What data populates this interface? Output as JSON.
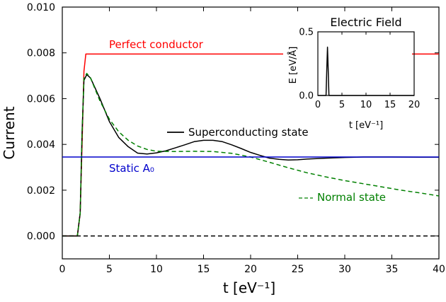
{
  "chart_data": [
    {
      "type": "line",
      "xlabel": "t [eV⁻¹]",
      "ylabel": "Current",
      "xlim": [
        0,
        40
      ],
      "ylim": [
        -0.001,
        0.01
      ],
      "xticks": [
        0,
        5,
        10,
        15,
        20,
        25,
        30,
        35,
        40
      ],
      "yticks": [
        0.0,
        0.002,
        0.004,
        0.006,
        0.008,
        0.01
      ],
      "xtick_labels": [
        "0",
        "5",
        "10",
        "15",
        "20",
        "25",
        "30",
        "35",
        "40"
      ],
      "ytick_labels": [
        "0.000",
        "0.002",
        "0.004",
        "0.006",
        "0.008",
        "0.010"
      ],
      "grid": false,
      "series": [
        {
          "name": "Perfect conductor",
          "color": "#ff0000",
          "style": "solid",
          "x": [
            0,
            1.6,
            1.9,
            2.1,
            2.3,
            2.5,
            40
          ],
          "y": [
            0,
            0,
            0.001,
            0.004,
            0.0072,
            0.00795,
            0.00795
          ]
        },
        {
          "name": "Superconducting state",
          "color": "#000000",
          "style": "solid",
          "x": [
            0,
            1.6,
            1.9,
            2.1,
            2.3,
            2.6,
            3.0,
            4.0,
            5.0,
            6.0,
            7.0,
            8.0,
            9.0,
            10.0,
            11.0,
            12.0,
            13.0,
            14.0,
            15.0,
            16.0,
            17.0,
            18.0,
            19.0,
            20.0,
            21.0,
            22.0,
            23.0,
            24.0,
            25.0,
            26.0,
            28.0,
            30.0,
            32.0,
            35.0,
            38.0,
            40.0
          ],
          "y": [
            0,
            0,
            0.001,
            0.0045,
            0.0068,
            0.00705,
            0.0069,
            0.006,
            0.005,
            0.0043,
            0.0039,
            0.00362,
            0.00358,
            0.00363,
            0.00372,
            0.00385,
            0.00398,
            0.00412,
            0.00418,
            0.00418,
            0.00412,
            0.00398,
            0.00382,
            0.00365,
            0.00352,
            0.0034,
            0.00335,
            0.00332,
            0.00333,
            0.00336,
            0.0034,
            0.00343,
            0.00345,
            0.00345,
            0.00344,
            0.00344
          ]
        },
        {
          "name": "Normal state",
          "color": "#008000",
          "style": "dashed",
          "x": [
            0,
            1.6,
            1.9,
            2.1,
            2.3,
            2.6,
            3.0,
            4.0,
            5.0,
            6.0,
            7.0,
            8.0,
            9.0,
            10.0,
            12.0,
            14.0,
            16.0,
            18.0,
            20.0,
            22.0,
            24.0,
            26.0,
            28.0,
            30.0,
            32.0,
            34.0,
            36.0,
            38.0,
            40.0
          ],
          "y": [
            0,
            0,
            0.001,
            0.0045,
            0.0069,
            0.0071,
            0.0069,
            0.0059,
            0.0051,
            0.00455,
            0.00418,
            0.00393,
            0.00378,
            0.0037,
            0.00369,
            0.0037,
            0.00369,
            0.00361,
            0.00345,
            0.00322,
            0.00298,
            0.00276,
            0.00258,
            0.00242,
            0.00228,
            0.00214,
            0.002,
            0.00188,
            0.00175
          ]
        },
        {
          "name": "Static A₀",
          "color": "#0000cc",
          "style": "solid",
          "x": [
            0,
            40
          ],
          "y": [
            0.00345,
            0.00345
          ]
        },
        {
          "name": "zero-reference",
          "color": "#000000",
          "style": "dashed",
          "x": [
            0,
            40
          ],
          "y": [
            0,
            0
          ]
        }
      ],
      "annotations": [
        {
          "text": "Perfect conductor",
          "x": 5,
          "y": 0.0082,
          "color": "#ff0000"
        },
        {
          "text": "Static A₀",
          "x": 5,
          "y": 0.0029,
          "color": "#0000cc"
        },
        {
          "text": "Superconducting state",
          "x": 13.5,
          "y": 0.0041,
          "color": "#000000",
          "legend_line": "solid"
        },
        {
          "text": "Normal state",
          "x": 27.7,
          "y": 0.00102,
          "color": "#008000",
          "legend_line": "dashed"
        }
      ]
    },
    {
      "type": "line",
      "title": "Electric Field",
      "xlabel": "t [eV⁻¹]",
      "ylabel": "E [eV/Å]",
      "xlim": [
        0,
        20
      ],
      "ylim": [
        0,
        0.5
      ],
      "xticks": [
        0,
        5,
        10,
        15,
        20
      ],
      "yticks": [
        0.0,
        0.5
      ],
      "xtick_labels": [
        "0",
        "5",
        "10",
        "15",
        "20"
      ],
      "ytick_labels": [
        "0.0",
        "0.5"
      ],
      "series": [
        {
          "name": "pulse",
          "color": "#000000",
          "style": "solid",
          "x": [
            0,
            1.7,
            1.85,
            2.0,
            2.15,
            2.3,
            20
          ],
          "y": [
            0,
            0,
            0.2,
            0.38,
            0.2,
            0,
            0
          ]
        }
      ]
    }
  ]
}
